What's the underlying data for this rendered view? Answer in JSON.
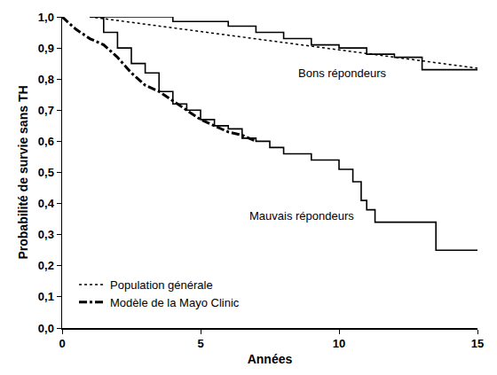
{
  "chart_data": {
    "type": "line",
    "xlabel": "Années",
    "ylabel": "Probabilité de survie sans TH",
    "xlim": [
      0,
      15
    ],
    "ylim": [
      0,
      1
    ],
    "xticks": [
      0,
      5,
      10,
      15
    ],
    "yticks": [
      {
        "value": 0,
        "label": "0,0"
      },
      {
        "value": 0.1,
        "label": "0,1"
      },
      {
        "value": 0.2,
        "label": "0,2"
      },
      {
        "value": 0.3,
        "label": "0,3"
      },
      {
        "value": 0.4,
        "label": "0,4"
      },
      {
        "value": 0.5,
        "label": "0,5"
      },
      {
        "value": 0.6,
        "label": "0,6"
      },
      {
        "value": 0.7,
        "label": "0,7"
      },
      {
        "value": 0.8,
        "label": "0,8"
      },
      {
        "value": 0.9,
        "label": "0,9"
      },
      {
        "value": 1,
        "label": "1,0"
      }
    ],
    "grid": false,
    "legend": "lower left",
    "series": [
      {
        "name": "Population générale",
        "type": "line",
        "line_style": "dot",
        "color": "#000000",
        "x": [
          1,
          15
        ],
        "values": [
          1.0,
          0.835
        ]
      },
      {
        "name": "Modèle de la Mayo Clinic",
        "type": "line",
        "line_style": "dashdot",
        "color": "#000000",
        "x": [
          0,
          0.5,
          1,
          1.5,
          2,
          2.5,
          3,
          3.5,
          4,
          4.5,
          5,
          5.5,
          6,
          6.5,
          7
        ],
        "values": [
          1.0,
          0.96,
          0.93,
          0.91,
          0.87,
          0.82,
          0.78,
          0.76,
          0.73,
          0.7,
          0.67,
          0.65,
          0.63,
          0.62,
          0.6
        ]
      },
      {
        "name": "Bons répondeurs",
        "type": "step",
        "line_style": "solid",
        "color": "#000000",
        "x": [
          1,
          4,
          6,
          7,
          8,
          9,
          10,
          11,
          12,
          13,
          15
        ],
        "values": [
          1.0,
          0.985,
          0.97,
          0.95,
          0.93,
          0.91,
          0.9,
          0.88,
          0.87,
          0.83,
          0.83
        ]
      },
      {
        "name": "Mauvais répondeurs",
        "type": "step",
        "line_style": "solid",
        "color": "#000000",
        "x": [
          1,
          1.5,
          2,
          2.5,
          3,
          3.5,
          4,
          4.5,
          5,
          5.5,
          6,
          6.5,
          7,
          7.5,
          8,
          9,
          10,
          10.5,
          10.8,
          11,
          11.3,
          13.5,
          15
        ],
        "values": [
          1.0,
          0.95,
          0.9,
          0.85,
          0.82,
          0.76,
          0.72,
          0.7,
          0.67,
          0.65,
          0.64,
          0.61,
          0.6,
          0.58,
          0.56,
          0.54,
          0.51,
          0.47,
          0.41,
          0.38,
          0.34,
          0.25,
          0.25
        ]
      }
    ]
  }
}
